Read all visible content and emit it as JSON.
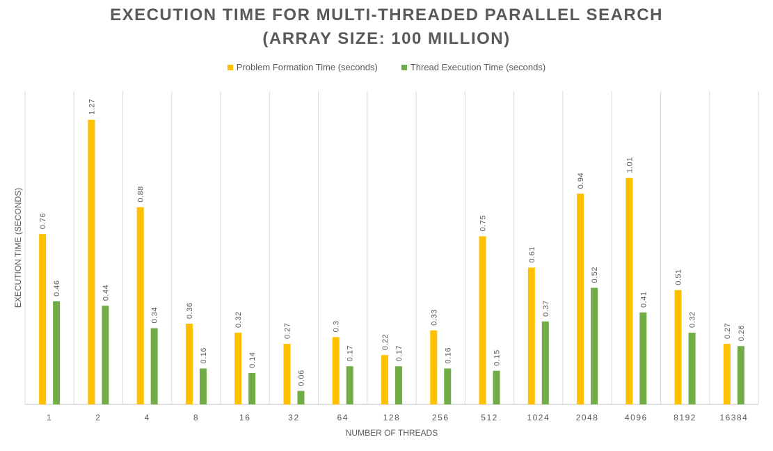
{
  "chart_data": {
    "type": "bar",
    "title_line1": "EXECUTION TIME FOR MULTI-THREADED PARALLEL SEARCH",
    "title_line2": "(ARRAY SIZE: 100 MILLION)",
    "xlabel": "NUMBER OF THREADS",
    "ylabel": "EXECUTION TIME (SECONDS)",
    "categories": [
      "1",
      "2",
      "4",
      "8",
      "16",
      "32",
      "64",
      "128",
      "256",
      "512",
      "1024",
      "2048",
      "4096",
      "8192",
      "16384"
    ],
    "series": [
      {
        "name": "Problem Formation Time (seconds)",
        "color": "#FFC000",
        "values": [
          0.76,
          1.27,
          0.88,
          0.36,
          0.32,
          0.27,
          0.3,
          0.22,
          0.33,
          0.75,
          0.61,
          0.94,
          1.01,
          0.51,
          0.27
        ]
      },
      {
        "name": "Thread Execution Time (seconds)",
        "color": "#70AD47",
        "values": [
          0.46,
          0.44,
          0.34,
          0.16,
          0.14,
          0.06,
          0.17,
          0.17,
          0.16,
          0.15,
          0.37,
          0.52,
          0.41,
          0.32,
          0.26
        ]
      }
    ],
    "ylim": [
      0,
      1.27
    ],
    "grid": "vertical",
    "legend_position": "top",
    "data_labels": true
  }
}
